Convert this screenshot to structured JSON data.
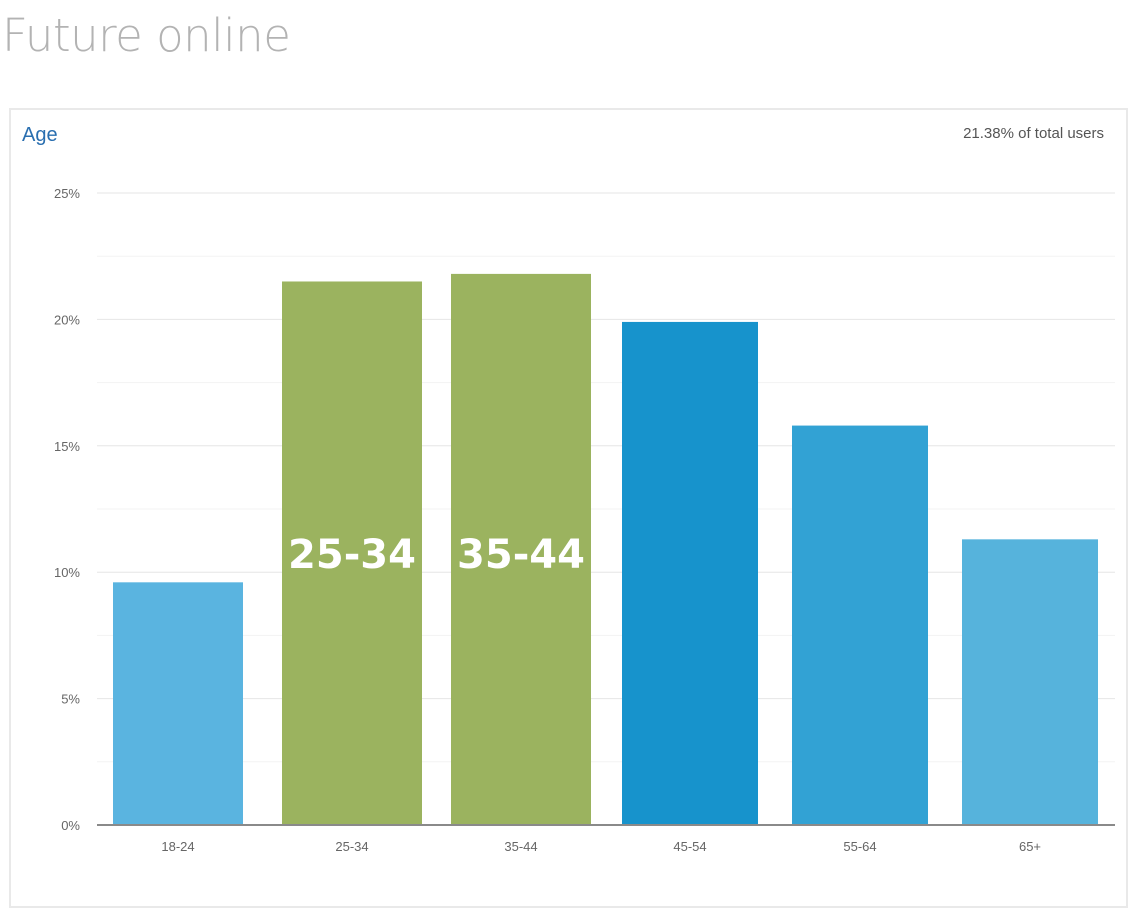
{
  "page": {
    "title": "Future online"
  },
  "card": {
    "title": "Age",
    "meta": "21.38% of total users"
  },
  "chart_data": {
    "type": "bar",
    "title": "Age",
    "xlabel": "",
    "ylabel": "",
    "categories": [
      "18-24",
      "25-34",
      "35-44",
      "45-54",
      "55-64",
      "65+"
    ],
    "values": [
      9.6,
      21.5,
      21.8,
      19.9,
      15.8,
      11.3
    ],
    "ylim": [
      0,
      25
    ],
    "yticks": [
      0,
      5,
      10,
      15,
      20,
      25
    ],
    "ytick_labels": [
      "0%",
      "5%",
      "10%",
      "15%",
      "20%",
      "25%"
    ],
    "grid": true,
    "colors": [
      "#5ab4e0",
      "#9bb35f",
      "#9bb35f",
      "#1793cc",
      "#32a2d4",
      "#56b3dc"
    ],
    "annotations": [
      {
        "category": "25-34",
        "text": "25-34"
      },
      {
        "category": "35-44",
        "text": "35-44"
      }
    ]
  }
}
